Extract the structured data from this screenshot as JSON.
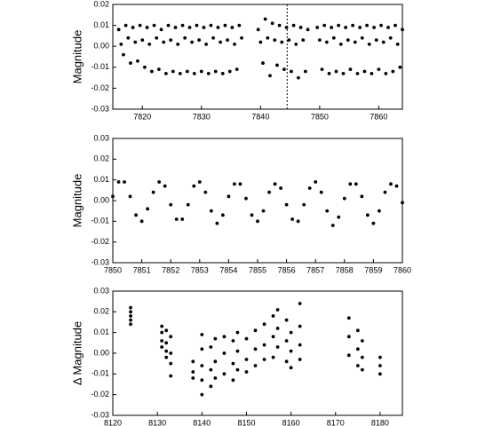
{
  "chart_data": [
    {
      "type": "scatter",
      "y_label": "Magnitude",
      "color": "#000000",
      "vline_x": 7844.5,
      "xlim": [
        7815,
        7864
      ],
      "ylim": [
        -0.03,
        0.02
      ],
      "xticks": [
        7820,
        7830,
        7840,
        7850,
        7860
      ],
      "yticks": [
        0.02,
        0.01,
        {
          "value": 0,
          "label": "0.00"
        },
        -0.01,
        -0.02,
        -0.03
      ],
      "x": [
        7816.0,
        7816.4,
        7816.8,
        7817.2,
        7817.6,
        7818.0,
        7818.4,
        7818.8,
        7819.2,
        7819.6,
        7820.0,
        7820.4,
        7820.8,
        7821.2,
        7821.6,
        7822.0,
        7822.4,
        7822.8,
        7823.2,
        7823.6,
        7824.0,
        7824.4,
        7824.8,
        7825.2,
        7825.6,
        7826.0,
        7826.4,
        7826.8,
        7827.2,
        7827.6,
        7828.0,
        7828.4,
        7828.8,
        7829.2,
        7829.6,
        7830.0,
        7830.4,
        7830.8,
        7831.2,
        7831.6,
        7832.0,
        7832.4,
        7832.8,
        7833.2,
        7833.6,
        7834.0,
        7834.4,
        7834.8,
        7835.2,
        7835.6,
        7836.0,
        7836.4,
        7836.8,
        7839.6,
        7840.0,
        7840.4,
        7840.8,
        7841.2,
        7841.6,
        7842.0,
        7842.4,
        7842.8,
        7843.2,
        7843.6,
        7844.0,
        7844.4,
        7844.8,
        7845.2,
        7845.6,
        7846.0,
        7846.4,
        7846.8,
        7847.2,
        7847.6,
        7848.0,
        7849.6,
        7850.0,
        7850.4,
        7850.8,
        7851.2,
        7851.6,
        7852.0,
        7852.4,
        7852.8,
        7853.2,
        7853.6,
        7854.0,
        7854.4,
        7854.8,
        7855.2,
        7855.6,
        7856.0,
        7856.4,
        7856.8,
        7857.2,
        7857.6,
        7858.0,
        7858.4,
        7858.8,
        7859.2,
        7859.6,
        7860.0,
        7860.4,
        7860.8,
        7861.2,
        7861.6,
        7862.0,
        7862.4,
        7862.8,
        7863.2,
        7863.6,
        7864.0
      ],
      "values": [
        0.008,
        0.001,
        -0.004,
        0.01,
        0.004,
        -0.008,
        0.009,
        0.002,
        -0.007,
        0.01,
        0.003,
        -0.01,
        0.009,
        0.001,
        -0.012,
        0.01,
        0.004,
        -0.011,
        0.008,
        0.002,
        -0.013,
        0.01,
        0.003,
        -0.012,
        0.009,
        0.001,
        -0.013,
        0.01,
        0.004,
        -0.012,
        0.009,
        0.002,
        -0.013,
        0.01,
        0.003,
        -0.012,
        0.009,
        0.001,
        -0.013,
        0.01,
        0.004,
        -0.012,
        0.009,
        0.002,
        -0.013,
        0.01,
        0.003,
        -0.012,
        0.009,
        0.001,
        -0.011,
        0.01,
        0.004,
        0.008,
        0.002,
        -0.008,
        0.013,
        0.004,
        -0.014,
        0.011,
        0.003,
        -0.009,
        0.01,
        0.002,
        -0.011,
        0.009,
        0.003,
        -0.012,
        0.01,
        0.001,
        -0.015,
        0.009,
        0.003,
        -0.012,
        0.008,
        0.009,
        0.003,
        -0.011,
        0.01,
        0.002,
        -0.013,
        0.009,
        0.004,
        -0.012,
        0.01,
        0.001,
        -0.013,
        0.009,
        0.003,
        -0.011,
        0.01,
        0.002,
        -0.013,
        0.009,
        0.004,
        -0.012,
        0.01,
        0.001,
        -0.013,
        0.009,
        0.003,
        -0.011,
        0.01,
        0.002,
        -0.013,
        0.009,
        0.004,
        -0.012,
        0.01,
        0.001,
        -0.01,
        0.008
      ]
    },
    {
      "type": "scatter",
      "y_label": "Magnitude",
      "color": "#000000",
      "xlim": [
        7850,
        7860
      ],
      "ylim": [
        -0.03,
        0.03
      ],
      "xticks": [
        7850,
        7851,
        7852,
        7853,
        7854,
        7855,
        7856,
        7857,
        7858,
        7859,
        7860
      ],
      "yticks": [
        0.03,
        0.02,
        0.01,
        {
          "value": 0,
          "label": "0.00"
        },
        -0.01,
        -0.02,
        -0.03
      ],
      "x": [
        7850.0,
        7850.2,
        7850.4,
        7850.6,
        7850.8,
        7851.0,
        7851.2,
        7851.4,
        7851.6,
        7851.8,
        7852.0,
        7852.2,
        7852.4,
        7852.6,
        7852.8,
        7853.0,
        7853.2,
        7853.4,
        7853.6,
        7853.8,
        7854.0,
        7854.2,
        7854.4,
        7854.6,
        7854.8,
        7855.0,
        7855.2,
        7855.4,
        7855.6,
        7855.8,
        7856.0,
        7856.2,
        7856.4,
        7856.6,
        7856.8,
        7857.0,
        7857.2,
        7857.4,
        7857.6,
        7857.8,
        7858.0,
        7858.2,
        7858.4,
        7858.6,
        7858.8,
        7859.0,
        7859.2,
        7859.4,
        7859.6,
        7859.8,
        7860.0
      ],
      "values": [
        0.002,
        0.009,
        0.009,
        0.002,
        -0.007,
        -0.01,
        -0.004,
        0.004,
        0.009,
        0.007,
        -0.002,
        -0.009,
        -0.009,
        -0.002,
        0.007,
        0.009,
        0.004,
        -0.005,
        -0.011,
        -0.007,
        0.002,
        0.008,
        0.008,
        0.001,
        -0.007,
        -0.01,
        -0.005,
        0.004,
        0.008,
        0.006,
        -0.002,
        -0.009,
        -0.01,
        -0.002,
        0.006,
        0.009,
        0.004,
        -0.005,
        -0.012,
        -0.008,
        0.001,
        0.008,
        0.008,
        0.002,
        -0.007,
        -0.011,
        -0.005,
        0.004,
        0.008,
        0.007,
        -0.001
      ]
    },
    {
      "type": "scatter",
      "y_label": "Δ Magnitude",
      "color": "#000000",
      "xlim": [
        8120,
        8185
      ],
      "ylim": [
        -0.03,
        0.03
      ],
      "xticks": [
        8120,
        8130,
        8140,
        8150,
        8160,
        8170,
        8180
      ],
      "yticks": [
        0.03,
        0.02,
        0.01,
        {
          "value": 0,
          "label": "0.00"
        },
        -0.01,
        -0.02,
        -0.03
      ],
      "x": [
        8124,
        8124,
        8124,
        8124,
        8124,
        8131,
        8131,
        8131,
        8131,
        8132,
        8132,
        8132,
        8132,
        8133,
        8133,
        8133,
        8133,
        8138,
        8138,
        8138,
        8140,
        8140,
        8140,
        8140,
        8140,
        8142,
        8142,
        8142,
        8143,
        8143,
        8143,
        8145,
        8145,
        8145,
        8147,
        8147,
        8147,
        8148,
        8148,
        8148,
        8150,
        8150,
        8150,
        8152,
        8152,
        8152,
        8154,
        8154,
        8154,
        8156,
        8156,
        8156,
        8157,
        8157,
        8157,
        8159,
        8159,
        8159,
        8160,
        8160,
        8160,
        8162,
        8162,
        8162,
        8162,
        8173,
        8173,
        8173,
        8175,
        8175,
        8175,
        8176,
        8176,
        8176,
        8180,
        8180,
        8180
      ],
      "values": [
        0.022,
        0.02,
        0.018,
        0.016,
        0.014,
        0.013,
        0.01,
        0.006,
        0.003,
        0.011,
        0.005,
        0.001,
        -0.002,
        0.008,
        0.0,
        -0.005,
        -0.011,
        -0.004,
        -0.009,
        -0.012,
        0.009,
        0.002,
        -0.006,
        -0.013,
        -0.02,
        0.003,
        -0.008,
        -0.016,
        0.007,
        -0.004,
        -0.012,
        0.008,
        0.0,
        -0.01,
        0.006,
        -0.005,
        -0.013,
        0.01,
        0.001,
        -0.008,
        0.007,
        -0.003,
        -0.009,
        0.011,
        0.002,
        -0.006,
        0.014,
        0.004,
        -0.003,
        0.018,
        0.008,
        -0.002,
        0.021,
        0.012,
        0.003,
        0.016,
        0.006,
        -0.004,
        0.01,
        0.001,
        -0.007,
        0.024,
        0.013,
        0.004,
        -0.003,
        0.017,
        0.008,
        -0.001,
        0.011,
        0.002,
        -0.006,
        0.006,
        -0.002,
        -0.008,
        -0.002,
        -0.006,
        -0.01
      ]
    }
  ]
}
